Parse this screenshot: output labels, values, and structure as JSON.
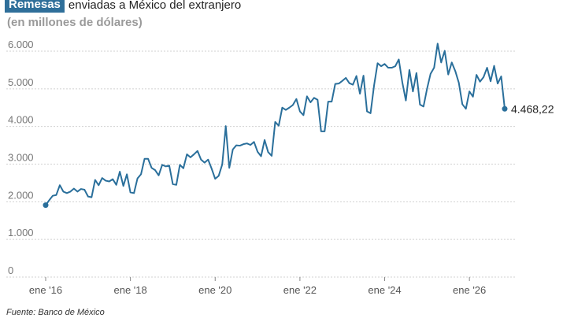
{
  "header": {
    "badge": "Remesas",
    "title_rest": "enviadas a México del extranjero",
    "subtitle": "(en millones de dólares)"
  },
  "footer": {
    "source": "Fuente: Banco de México"
  },
  "colors": {
    "line": "#2a6f9b",
    "grid": "#d0d0d0",
    "tick": "#777777",
    "badge": "#2f6f9a"
  },
  "chart_data": {
    "type": "line",
    "title": "Remesas enviadas a México del extranjero",
    "subtitle": "(en millones de dólares)",
    "xlabel": "",
    "ylabel": "",
    "grid": true,
    "ylim": [
      0,
      6000
    ],
    "yticks": [
      0,
      1000,
      2000,
      3000,
      4000,
      5000,
      6000
    ],
    "ytick_labels": [
      "0",
      "1.000",
      "2.000",
      "3.000",
      "4.000",
      "5.000",
      "6.000"
    ],
    "xticks": [
      2016,
      2018,
      2020,
      2022,
      2024,
      2026
    ],
    "xtick_labels": [
      "ene '16",
      "ene '18",
      "ene '20",
      "ene '22",
      "ene '24",
      "ene '26"
    ],
    "x_start": 2016,
    "x_step": 0.0833333,
    "end_label": "4.468,22",
    "series": [
      {
        "name": "Remesas",
        "values": [
          1910,
          2040,
          2160,
          2180,
          2440,
          2270,
          2230,
          2270,
          2350,
          2270,
          2340,
          2320,
          2140,
          2120,
          2580,
          2440,
          2630,
          2560,
          2540,
          2600,
          2450,
          2800,
          2420,
          2730,
          2250,
          2230,
          2620,
          2730,
          3140,
          3140,
          2900,
          2840,
          2700,
          2980,
          2940,
          2960,
          2470,
          2450,
          2980,
          2890,
          3260,
          3180,
          3260,
          3350,
          3120,
          3040,
          3120,
          2880,
          2610,
          2690,
          2990,
          4010,
          2900,
          3390,
          3500,
          3490,
          3530,
          3550,
          3510,
          3590,
          3330,
          3210,
          3640,
          3320,
          3220,
          4120,
          4020,
          4500,
          4440,
          4500,
          4570,
          4730,
          4400,
          4300,
          4800,
          4640,
          4760,
          4710,
          3870,
          3870,
          4660,
          4660,
          5130,
          5140,
          5210,
          5290,
          5150,
          5110,
          5340,
          4870,
          5350,
          4400,
          4350,
          5090,
          5680,
          5600,
          5660,
          5560,
          5560,
          5600,
          5780,
          5170,
          4690,
          5500,
          4930,
          5420,
          4580,
          4530,
          5000,
          5400,
          5560,
          6200,
          5700,
          6010,
          5380,
          5700,
          5470,
          5160,
          4590,
          4470,
          4930,
          4790,
          5370,
          5190,
          5310,
          5560,
          5200,
          5610,
          5140,
          5330,
          4468.22
        ]
      }
    ]
  }
}
